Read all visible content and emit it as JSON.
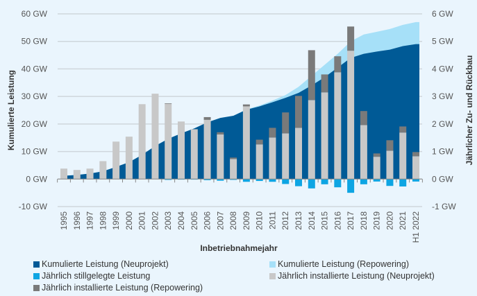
{
  "chart_data": {
    "type": "bar",
    "xlabel": "Inbetriebnahmejahr",
    "ylabel_left": "Kumulierte Leistung",
    "ylabel_right": "Jährlicher Zu- und Rückbau",
    "ylim_left": [
      -10,
      60
    ],
    "ylim_right": [
      -1,
      6
    ],
    "yticks_left": [
      "-10 GW",
      "0 GW",
      "10 GW",
      "20 GW",
      "30 GW",
      "40 GW",
      "50 GW",
      "60 GW"
    ],
    "yticks_right": [
      "-1 GW",
      "0 GW",
      "1 GW",
      "2 GW",
      "3 GW",
      "4 GW",
      "5 GW",
      "6 GW"
    ],
    "grid": true,
    "legend_placement": "bottom",
    "categories": [
      "1995",
      "1996",
      "1997",
      "1998",
      "1999",
      "2000",
      "2001",
      "2002",
      "2003",
      "2004",
      "2005",
      "2006",
      "2007",
      "2008",
      "2009",
      "2010",
      "2011",
      "2012",
      "2013",
      "2014",
      "2015",
      "2016",
      "2017",
      "2018",
      "2019",
      "2020",
      "2021",
      "H1 2022"
    ],
    "series": [
      {
        "name": "Kumulierte Leistung (Neuprojekt)",
        "type": "area",
        "axis": "left",
        "color": "#005a96",
        "values": [
          1.1,
          1.5,
          2.0,
          2.8,
          4.4,
          6.1,
          8.8,
          12.0,
          14.6,
          16.6,
          18.4,
          20.6,
          22.2,
          23.0,
          25.2,
          26.4,
          27.9,
          29.5,
          31.3,
          34.0,
          37.0,
          40.5,
          44.0,
          45.5,
          46.3,
          47.0,
          48.3,
          49.0
        ]
      },
      {
        "name": "Kumulierte Leistung (Repowering)",
        "type": "area",
        "axis": "left",
        "color": "#a6e0f8",
        "values": [
          0,
          0,
          0,
          0,
          0,
          0,
          0,
          0,
          0,
          0,
          0,
          0,
          0,
          0,
          0.1,
          0.3,
          0.6,
          1.0,
          2.2,
          3.5,
          4.5,
          5.0,
          6.0,
          7.0,
          7.2,
          7.5,
          7.7,
          8.0
        ]
      },
      {
        "name": "Jährlich stillgelegte Leistung",
        "type": "bar",
        "axis": "right",
        "color": "#0ea5e3",
        "values": [
          0,
          0,
          0,
          0,
          0,
          0,
          0,
          0,
          -0.03,
          -0.02,
          -0.02,
          -0.04,
          -0.06,
          -0.03,
          -0.1,
          -0.07,
          -0.1,
          -0.18,
          -0.26,
          -0.34,
          -0.19,
          -0.3,
          -0.5,
          -0.19,
          -0.09,
          -0.25,
          -0.27,
          -0.09
        ]
      },
      {
        "name": "Jährlich installierte Leistung (Neuprojekt)",
        "type": "bar",
        "axis": "right",
        "color": "#c8c8c8",
        "values": [
          0.38,
          0.33,
          0.38,
          0.65,
          1.36,
          1.54,
          2.72,
          3.1,
          2.73,
          2.09,
          1.81,
          2.15,
          1.62,
          0.73,
          2.64,
          1.26,
          1.51,
          1.66,
          1.86,
          2.87,
          3.15,
          3.88,
          4.66,
          1.96,
          0.81,
          1.03,
          1.69,
          0.83
        ]
      },
      {
        "name": "Jährlich installierte Leistung (Repowering)",
        "type": "bar",
        "axis": "right",
        "color": "#7a7a7a",
        "values": [
          0,
          0,
          0,
          0,
          0,
          0,
          0,
          0,
          0.02,
          0,
          0,
          0.1,
          0.08,
          0.05,
          0.07,
          0.17,
          0.35,
          0.76,
          1.16,
          1.81,
          0.65,
          0.58,
          0.88,
          0.51,
          0.12,
          0.38,
          0.22,
          0.15
        ]
      }
    ]
  }
}
